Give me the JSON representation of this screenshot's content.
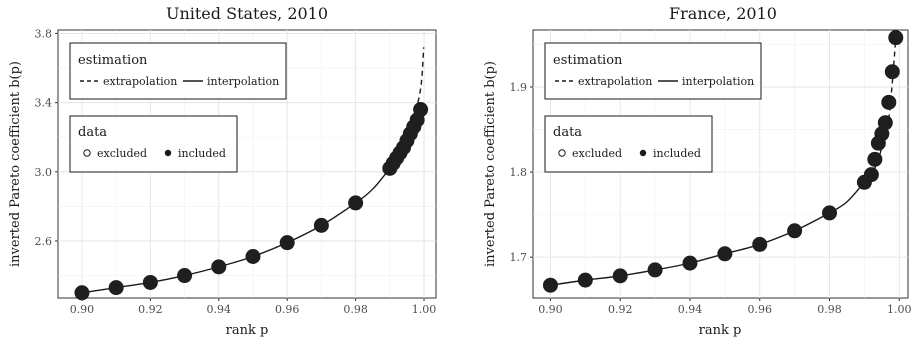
{
  "chart_data": [
    {
      "type": "line",
      "title": "United States, 2010",
      "xlabel": "rank p",
      "ylabel": "inverted Pareto coefficient b(p)",
      "xlim": [
        0.893,
        1.0035
      ],
      "ylim": [
        2.27,
        3.82
      ],
      "xticks": [
        0.9,
        0.92,
        0.94,
        0.96,
        0.98,
        1.0
      ],
      "xtick_labels": [
        "0.90",
        "0.92",
        "0.94",
        "0.96",
        "0.98",
        "1.00"
      ],
      "yticks": [
        2.6,
        3.0,
        3.4,
        3.8
      ],
      "ytick_labels": [
        "2.6",
        "3.0",
        "3.4",
        "3.8"
      ],
      "grid": true,
      "legend": {
        "estimation": {
          "title": "estimation",
          "entries": [
            "extrapolation",
            "interpolation"
          ]
        },
        "data": {
          "title": "data",
          "entries": [
            "excluded",
            "included"
          ]
        },
        "position": "top-left"
      },
      "points": {
        "x": [
          0.9,
          0.91,
          0.92,
          0.93,
          0.94,
          0.95,
          0.96,
          0.97,
          0.98,
          0.99,
          0.991,
          0.992,
          0.993,
          0.994,
          0.995,
          0.996,
          0.997,
          0.998,
          0.999
        ],
        "y": [
          2.3,
          2.33,
          2.36,
          2.4,
          2.45,
          2.51,
          2.59,
          2.69,
          2.82,
          3.02,
          3.05,
          3.08,
          3.11,
          3.14,
          3.18,
          3.22,
          3.26,
          3.3,
          3.36
        ],
        "status": "included"
      },
      "interpolation": {
        "x": [
          0.9,
          0.91,
          0.92,
          0.93,
          0.94,
          0.95,
          0.96,
          0.97,
          0.98,
          0.985,
          0.99,
          0.992,
          0.994,
          0.996,
          0.998,
          0.999
        ],
        "y": [
          2.3,
          2.33,
          2.36,
          2.4,
          2.45,
          2.51,
          2.59,
          2.69,
          2.82,
          2.9,
          3.02,
          3.08,
          3.14,
          3.22,
          3.3,
          3.36
        ]
      },
      "extrapolation": {
        "x": [
          0.997,
          0.998,
          0.999,
          0.9995,
          0.9999
        ],
        "y": [
          3.3,
          3.38,
          3.48,
          3.58,
          3.72
        ]
      }
    },
    {
      "type": "line",
      "title": "France, 2010",
      "xlabel": "rank p",
      "ylabel": "inverted Pareto coefficient b(p)",
      "xlim": [
        0.895,
        1.0025
      ],
      "ylim": [
        1.652,
        1.967
      ],
      "xticks": [
        0.9,
        0.92,
        0.94,
        0.96,
        0.98,
        1.0
      ],
      "xtick_labels": [
        "0.90",
        "0.92",
        "0.94",
        "0.96",
        "0.98",
        "1.00"
      ],
      "yticks": [
        1.7,
        1.8,
        1.9
      ],
      "ytick_labels": [
        "1.7",
        "1.8",
        "1.9"
      ],
      "grid": true,
      "legend": {
        "estimation": {
          "title": "estimation",
          "entries": [
            "extrapolation",
            "interpolation"
          ]
        },
        "data": {
          "title": "data",
          "entries": [
            "excluded",
            "included"
          ]
        },
        "position": "top-left"
      },
      "points": {
        "x": [
          0.9,
          0.91,
          0.92,
          0.93,
          0.94,
          0.95,
          0.96,
          0.97,
          0.98,
          0.99,
          0.992,
          0.993,
          0.994,
          0.995,
          0.996,
          0.997,
          0.998,
          0.999
        ],
        "y": [
          1.667,
          1.673,
          1.678,
          1.685,
          1.693,
          1.704,
          1.715,
          1.731,
          1.752,
          1.788,
          1.797,
          1.815,
          1.834,
          1.845,
          1.858,
          1.882,
          1.918,
          1.958
        ],
        "status": "included"
      },
      "interpolation": {
        "x": [
          0.9,
          0.91,
          0.92,
          0.93,
          0.94,
          0.95,
          0.96,
          0.97,
          0.98,
          0.985,
          0.99,
          0.992,
          0.994,
          0.996,
          0.997
        ],
        "y": [
          1.667,
          1.673,
          1.678,
          1.685,
          1.693,
          1.704,
          1.715,
          1.731,
          1.752,
          1.765,
          1.788,
          1.797,
          1.815,
          1.845,
          1.862
        ]
      },
      "extrapolation": {
        "x": [
          0.997,
          0.998,
          0.999
        ],
        "y": [
          1.862,
          1.905,
          1.958
        ]
      }
    }
  ]
}
